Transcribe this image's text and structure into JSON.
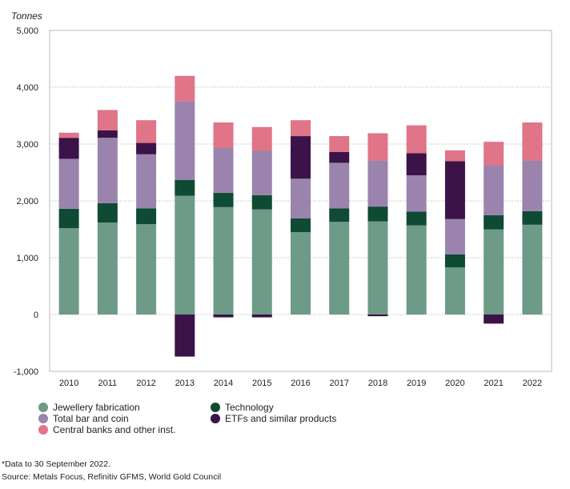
{
  "chart_data": {
    "type": "bar",
    "stacked": true,
    "ylabel": "Tonnes",
    "ylim": [
      -1000,
      5000
    ],
    "yticks": [
      -1000,
      0,
      1000,
      2000,
      3000,
      4000,
      5000
    ],
    "ytick_labels": [
      "-1,000",
      "0",
      "1,000",
      "2,000",
      "3,000",
      "4,000",
      "5,000"
    ],
    "grid": true,
    "legend_position": "bottom-left",
    "categories": [
      "2010",
      "2011",
      "2012",
      "2013",
      "2014",
      "2015",
      "2016",
      "2017",
      "2018",
      "2019",
      "2020",
      "2021",
      "2022"
    ],
    "series": [
      {
        "name": "Jewellery fabrication",
        "color": "#6e9a88",
        "values": [
          1520,
          1620,
          1590,
          2090,
          1890,
          1850,
          1450,
          1630,
          1640,
          1570,
          830,
          1500,
          1580
        ]
      },
      {
        "name": "Technology",
        "color": "#0f4a34",
        "values": [
          340,
          340,
          280,
          280,
          250,
          250,
          240,
          240,
          260,
          240,
          230,
          250,
          240
        ]
      },
      {
        "name": "Total bar and coin",
        "color": "#9a84ad",
        "values": [
          880,
          1150,
          950,
          1380,
          790,
          780,
          700,
          800,
          810,
          640,
          620,
          870,
          890
        ]
      },
      {
        "name": "ETFs and similar products",
        "color": "#3b1348",
        "values": [
          370,
          130,
          200,
          -740,
          -50,
          -50,
          750,
          190,
          -30,
          390,
          1020,
          -160,
          0
        ]
      },
      {
        "name": "Central banks and other inst.",
        "color": "#e07488",
        "values": [
          90,
          360,
          400,
          450,
          450,
          420,
          280,
          280,
          480,
          490,
          190,
          420,
          670
        ]
      }
    ]
  },
  "legend": {
    "items": [
      {
        "label": "Jewellery fabrication",
        "color": "#6e9a88"
      },
      {
        "label": "Technology",
        "color": "#0f4a34"
      },
      {
        "label": "Total bar and coin",
        "color": "#9a84ad"
      },
      {
        "label": "ETFs and similar products",
        "color": "#3b1348"
      },
      {
        "label": "Central banks and other inst.",
        "color": "#e07488"
      }
    ]
  },
  "notes": {
    "footnote": "*Data to 30 September 2022.",
    "source": "Source: Metals Focus, Refinitiv GFMS, World Gold Council"
  }
}
